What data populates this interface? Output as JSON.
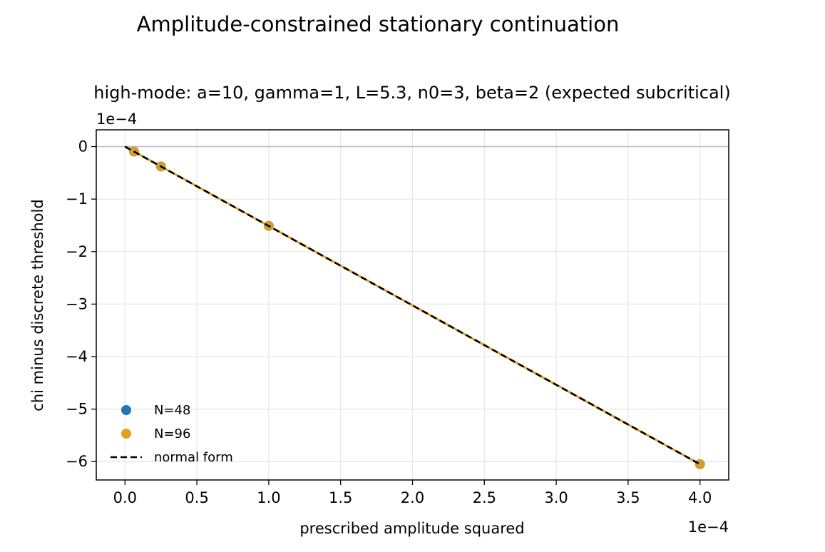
{
  "figure": {
    "suptitle": "Amplitude-constrained stationary continuation",
    "title": "high-mode: a=10, gamma=1, L=5.3, n0=3, beta=2 (expected subcritical)"
  },
  "chart_data": {
    "type": "scatter",
    "title": "high-mode: a=10, gamma=1, L=5.3, n0=3, beta=2 (expected subcritical)",
    "xlabel": "prescribed amplitude squared",
    "ylabel": "chi minus discrete threshold",
    "x_offset_text": "1e−4",
    "y_offset_text": "1e−4",
    "x_scale": 0.0001,
    "y_scale": 0.0001,
    "xlim": [
      -0.2,
      4.2
    ],
    "ylim": [
      -6.35,
      0.32
    ],
    "xticks": [
      0.0,
      0.5,
      1.0,
      1.5,
      2.0,
      2.5,
      3.0,
      3.5,
      4.0
    ],
    "xtick_labels": [
      "0.0",
      "0.5",
      "1.0",
      "1.5",
      "2.0",
      "2.5",
      "3.0",
      "3.5",
      "4.0"
    ],
    "yticks": [
      0,
      -1,
      -2,
      -3,
      -4,
      -5,
      -6
    ],
    "ytick_labels": [
      "0",
      "−1",
      "−2",
      "−3",
      "−4",
      "−5",
      "−6"
    ],
    "grid": true,
    "zero_line": true,
    "legend_position": "lower-left",
    "series": [
      {
        "name": "N=48",
        "kind": "scatter",
        "color": "#1f77b4",
        "x": [
          0.0625,
          0.25,
          1.0,
          4.0
        ],
        "y": [
          -0.095,
          -0.378,
          -1.51,
          -6.05
        ]
      },
      {
        "name": "N=96",
        "kind": "scatter",
        "color": "#e6a020",
        "x": [
          0.0625,
          0.25,
          1.0,
          4.0
        ],
        "y": [
          -0.095,
          -0.378,
          -1.51,
          -6.05
        ]
      },
      {
        "name": "normal form",
        "kind": "dashed-line",
        "color": "#000000",
        "x": [
          0.0,
          4.0
        ],
        "y": [
          0.0,
          -6.05
        ]
      }
    ],
    "extra_lines": [
      {
        "kind": "solid-line",
        "color": "#e6a020",
        "x": [
          0.0,
          4.0
        ],
        "y": [
          0.0,
          -6.05
        ]
      },
      {
        "kind": "solid-line",
        "color": "#1f77b4",
        "x": [
          0.0,
          0.0625
        ],
        "y": [
          0.0,
          -0.095
        ]
      }
    ]
  }
}
